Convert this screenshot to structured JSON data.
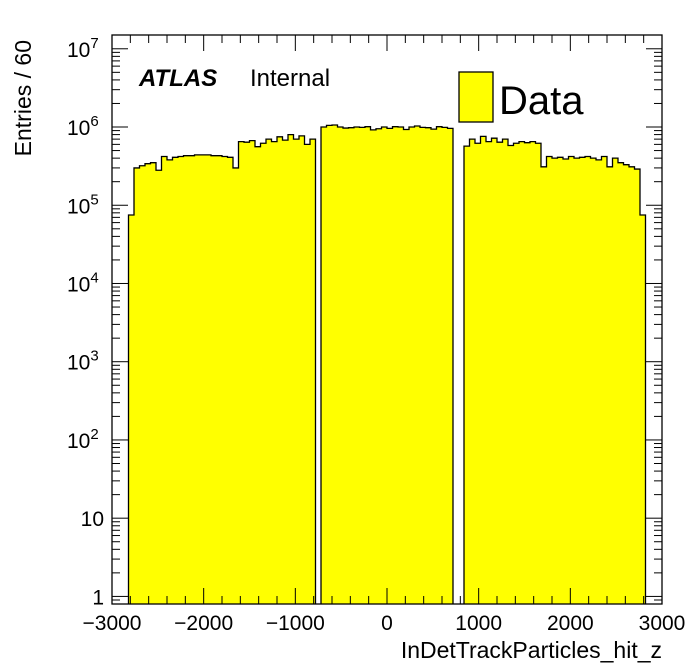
{
  "chart_data": {
    "type": "bar",
    "histtype": "step-filled",
    "xlabel": "InDetTrackParticles_hit_z",
    "ylabel": "Entries / 60",
    "xlim": [
      -3000,
      3000
    ],
    "ylim": [
      0.8,
      15000000
    ],
    "yscale": "log",
    "bin_width": 60,
    "x_ticks": [
      {
        "value": -3000,
        "label": "−3000"
      },
      {
        "value": -2000,
        "label": "−2000"
      },
      {
        "value": -1000,
        "label": "−1000"
      },
      {
        "value": 0,
        "label": "0"
      },
      {
        "value": 1000,
        "label": "1000"
      },
      {
        "value": 2000,
        "label": "2000"
      },
      {
        "value": 3000,
        "label": "3000"
      }
    ],
    "y_ticks": [
      {
        "value": 1,
        "base": "1",
        "exp": ""
      },
      {
        "value": 10,
        "base": "10",
        "exp": ""
      },
      {
        "value": 100,
        "base": "10",
        "exp": "2"
      },
      {
        "value": 1000,
        "base": "10",
        "exp": "3"
      },
      {
        "value": 10000,
        "base": "10",
        "exp": "4"
      },
      {
        "value": 100000,
        "base": "10",
        "exp": "5"
      },
      {
        "value": 1000000,
        "base": "10",
        "exp": "6"
      },
      {
        "value": 10000000,
        "base": "10",
        "exp": "7"
      }
    ],
    "fill_color": "#ffff00",
    "line_color": "#000000",
    "series": [
      {
        "name": "Data",
        "bins": [
          [
            -2820,
            -2760,
            75000
          ],
          [
            -2760,
            -2700,
            300000
          ],
          [
            -2700,
            -2640,
            320000
          ],
          [
            -2640,
            -2580,
            340000
          ],
          [
            -2580,
            -2520,
            350000
          ],
          [
            -2520,
            -2460,
            280000
          ],
          [
            -2460,
            -2400,
            420000
          ],
          [
            -2400,
            -2340,
            380000
          ],
          [
            -2340,
            -2280,
            410000
          ],
          [
            -2280,
            -2220,
            420000
          ],
          [
            -2220,
            -2160,
            430000
          ],
          [
            -2160,
            -2100,
            430000
          ],
          [
            -2100,
            -2040,
            440000
          ],
          [
            -2040,
            -1980,
            440000
          ],
          [
            -1980,
            -1920,
            440000
          ],
          [
            -1920,
            -1860,
            430000
          ],
          [
            -1860,
            -1800,
            430000
          ],
          [
            -1800,
            -1740,
            420000
          ],
          [
            -1740,
            -1680,
            410000
          ],
          [
            -1680,
            -1620,
            300000
          ],
          [
            -1620,
            -1560,
            650000
          ],
          [
            -1560,
            -1500,
            640000
          ],
          [
            -1500,
            -1440,
            670000
          ],
          [
            -1440,
            -1380,
            560000
          ],
          [
            -1380,
            -1320,
            620000
          ],
          [
            -1320,
            -1260,
            700000
          ],
          [
            -1260,
            -1200,
            650000
          ],
          [
            -1200,
            -1140,
            750000
          ],
          [
            -1140,
            -1080,
            680000
          ],
          [
            -1080,
            -1020,
            800000
          ],
          [
            -1020,
            -960,
            700000
          ],
          [
            -960,
            -900,
            770000
          ],
          [
            -900,
            -840,
            600000
          ],
          [
            -840,
            -780,
            700000
          ],
          [
            -720,
            -660,
            1000000
          ],
          [
            -660,
            -600,
            1050000
          ],
          [
            -600,
            -540,
            1060000
          ],
          [
            -540,
            -480,
            1000000
          ],
          [
            -480,
            -420,
            970000
          ],
          [
            -420,
            -360,
            980000
          ],
          [
            -360,
            -300,
            1000000
          ],
          [
            -300,
            -240,
            990000
          ],
          [
            -240,
            -180,
            1010000
          ],
          [
            -180,
            -120,
            920000
          ],
          [
            -120,
            -60,
            950000
          ],
          [
            -60,
            0,
            1000000
          ],
          [
            0,
            60,
            960000
          ],
          [
            60,
            120,
            1010000
          ],
          [
            120,
            180,
            1000000
          ],
          [
            180,
            240,
            930000
          ],
          [
            240,
            300,
            1000000
          ],
          [
            300,
            360,
            1030000
          ],
          [
            360,
            420,
            990000
          ],
          [
            420,
            480,
            980000
          ],
          [
            480,
            540,
            940000
          ],
          [
            540,
            600,
            1010000
          ],
          [
            600,
            660,
            990000
          ],
          [
            660,
            720,
            960000
          ],
          [
            840,
            900,
            570000
          ],
          [
            900,
            960,
            700000
          ],
          [
            960,
            1020,
            620000
          ],
          [
            1020,
            1080,
            760000
          ],
          [
            1080,
            1140,
            650000
          ],
          [
            1140,
            1200,
            720000
          ],
          [
            1200,
            1260,
            640000
          ],
          [
            1260,
            1320,
            700000
          ],
          [
            1320,
            1380,
            580000
          ],
          [
            1380,
            1440,
            620000
          ],
          [
            1440,
            1500,
            650000
          ],
          [
            1500,
            1560,
            630000
          ],
          [
            1560,
            1620,
            650000
          ],
          [
            1620,
            1680,
            620000
          ],
          [
            1680,
            1740,
            310000
          ],
          [
            1740,
            1800,
            420000
          ],
          [
            1800,
            1860,
            400000
          ],
          [
            1860,
            1920,
            410000
          ],
          [
            1920,
            1980,
            390000
          ],
          [
            1980,
            2040,
            420000
          ],
          [
            2040,
            2100,
            400000
          ],
          [
            2100,
            2160,
            410000
          ],
          [
            2160,
            2220,
            420000
          ],
          [
            2220,
            2280,
            400000
          ],
          [
            2280,
            2340,
            380000
          ],
          [
            2340,
            2400,
            420000
          ],
          [
            2400,
            2460,
            310000
          ],
          [
            2460,
            2520,
            400000
          ],
          [
            2520,
            2580,
            350000
          ],
          [
            2580,
            2640,
            330000
          ],
          [
            2640,
            2700,
            310000
          ],
          [
            2700,
            2760,
            290000
          ],
          [
            2760,
            2820,
            75000
          ]
        ]
      }
    ]
  },
  "annotations": {
    "atlas": "ATLAS",
    "status": "Internal"
  },
  "legend": {
    "label": "Data"
  }
}
